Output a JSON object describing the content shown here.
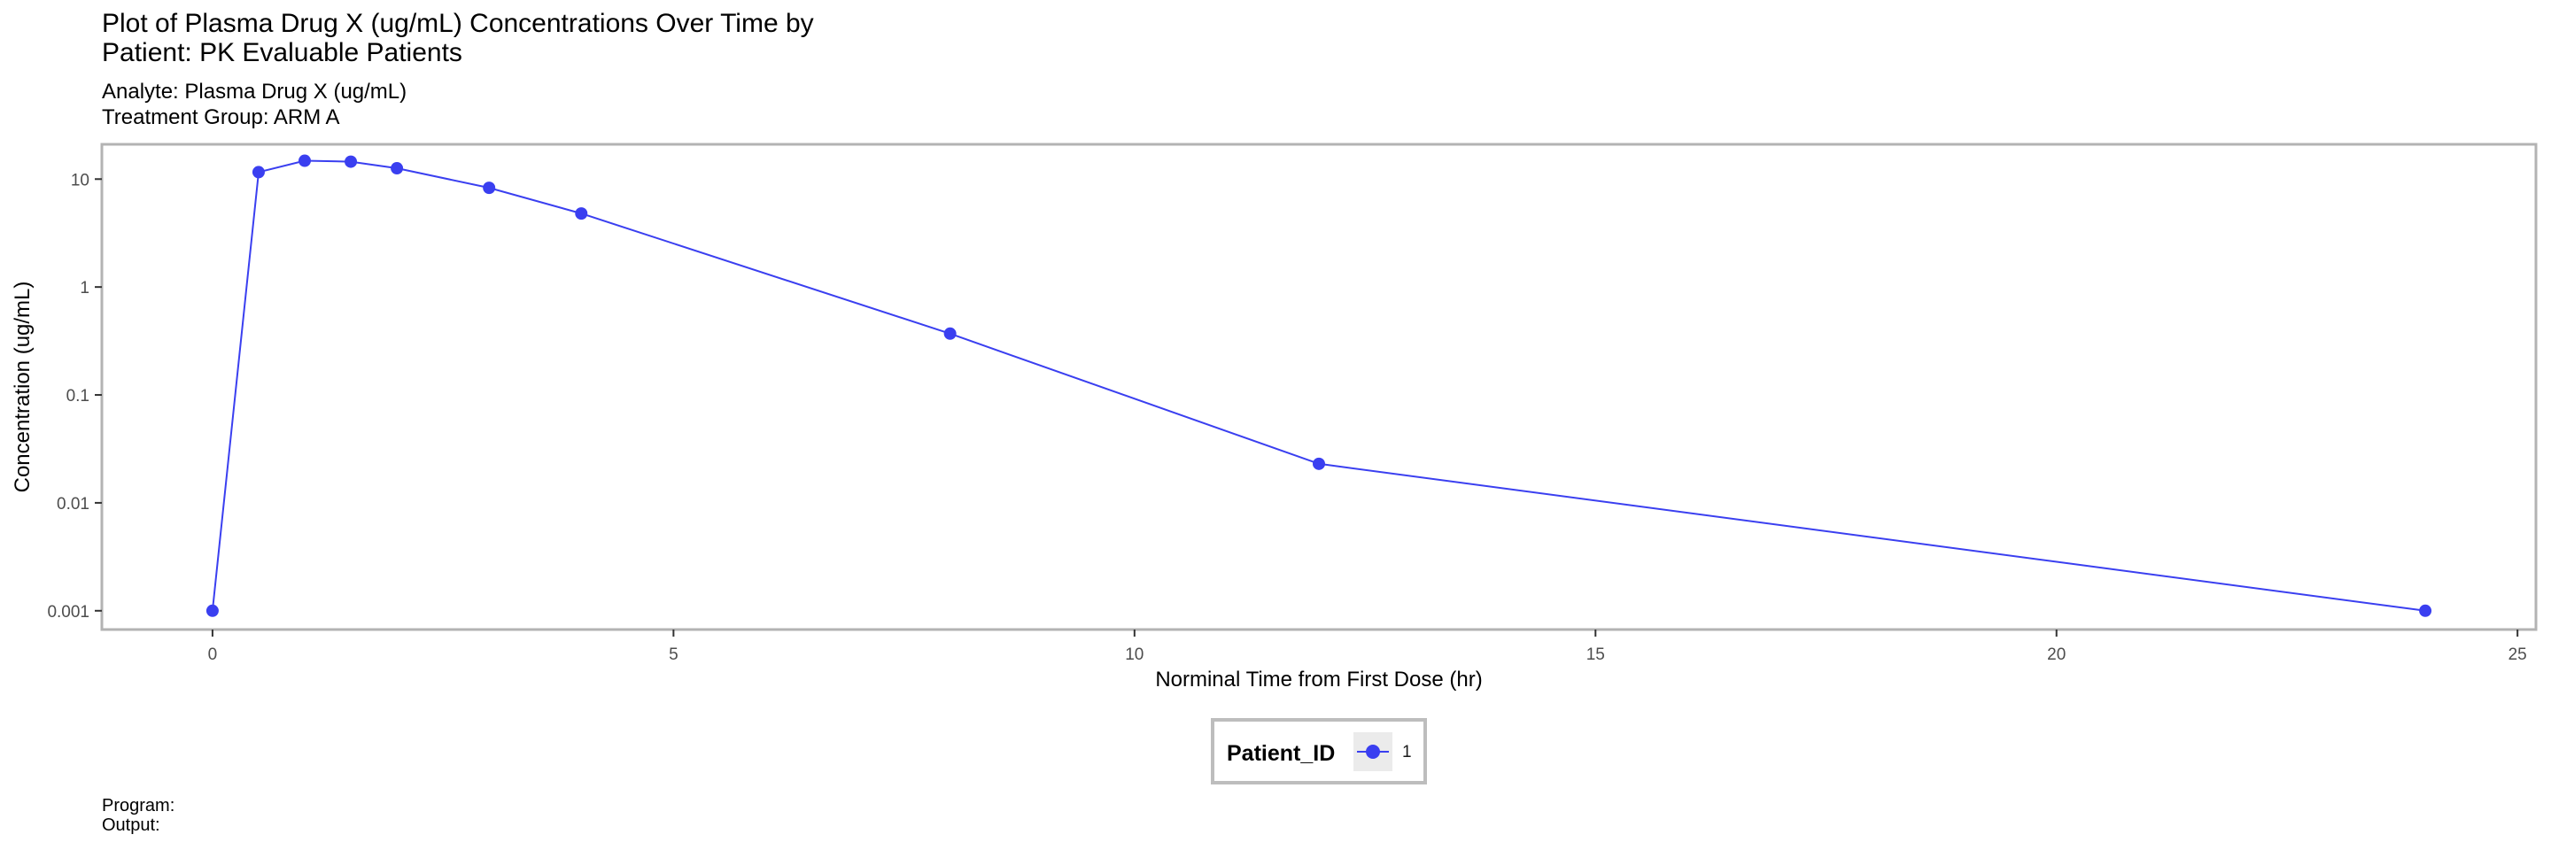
{
  "title_line1": "Plot of Plasma Drug X (ug/mL) Concentrations Over Time by",
  "title_line2": "Patient: PK Evaluable Patients",
  "subtitle_line1": "Analyte: Plasma Drug X (ug/mL)",
  "subtitle_line2": "Treatment Group: ARM A",
  "caption_line1": "Program:",
  "caption_line2": "Output:",
  "chart_data": {
    "type": "line",
    "xlabel": "Norminal Time from First Dose (hr)",
    "ylabel": "Concentration (ug/mL)",
    "x_scale": "linear",
    "y_scale": "log10",
    "xlim": [
      -1.2,
      25.2
    ],
    "ylim": [
      0.00067,
      21
    ],
    "x_ticks": [
      0,
      5,
      10,
      15,
      20,
      25
    ],
    "x_tick_labels": [
      "0",
      "5",
      "10",
      "15",
      "20",
      "25"
    ],
    "y_ticks": [
      0.001,
      0.01,
      0.1,
      1,
      10
    ],
    "y_tick_labels": [
      "0.001",
      "0.01",
      "0.1",
      "1",
      "10"
    ],
    "grid": false,
    "legend_position": "bottom",
    "legend_title": "Patient_ID",
    "series": [
      {
        "name": "1",
        "color": "#3a3ff0",
        "x": [
          0,
          0.5,
          1,
          1.5,
          2,
          3,
          4,
          8,
          12,
          24
        ],
        "y": [
          0.001,
          11.6,
          14.8,
          14.5,
          12.6,
          8.3,
          4.8,
          0.37,
          0.023,
          0.001
        ]
      }
    ]
  }
}
